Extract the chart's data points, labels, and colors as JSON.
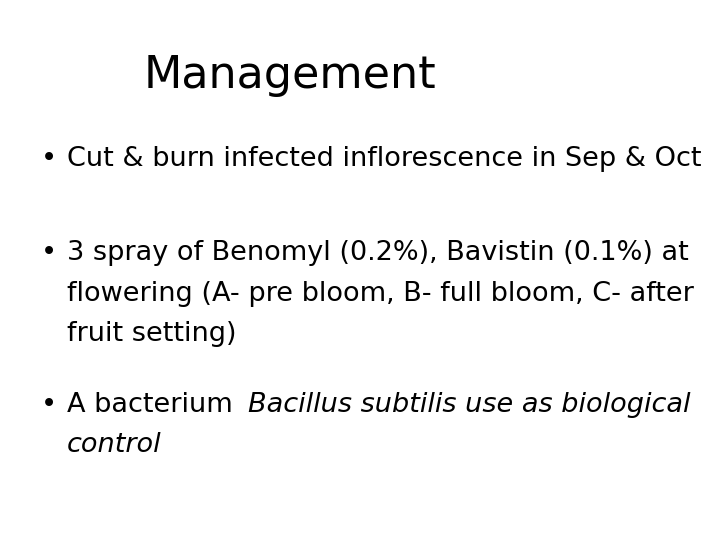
{
  "title": "Management",
  "background_color": "#ffffff",
  "text_color": "#000000",
  "title_fontsize": 32,
  "body_fontsize": 19.5,
  "bullet1": "Cut & burn infected inflorescence in Sep & Oct",
  "bullet2_line1": "3 spray of Benomyl (0.2%), Bavistin (0.1%) at",
  "bullet2_line2": "flowering (A- pre bloom, B- full bloom, C- after",
  "bullet2_line3": "fruit setting)",
  "bullet3_normal": "A bacterium ",
  "bullet3_italic": "Bacillus subtilis use as biological",
  "bullet3_italic2": "control",
  "bullet_char": "•"
}
